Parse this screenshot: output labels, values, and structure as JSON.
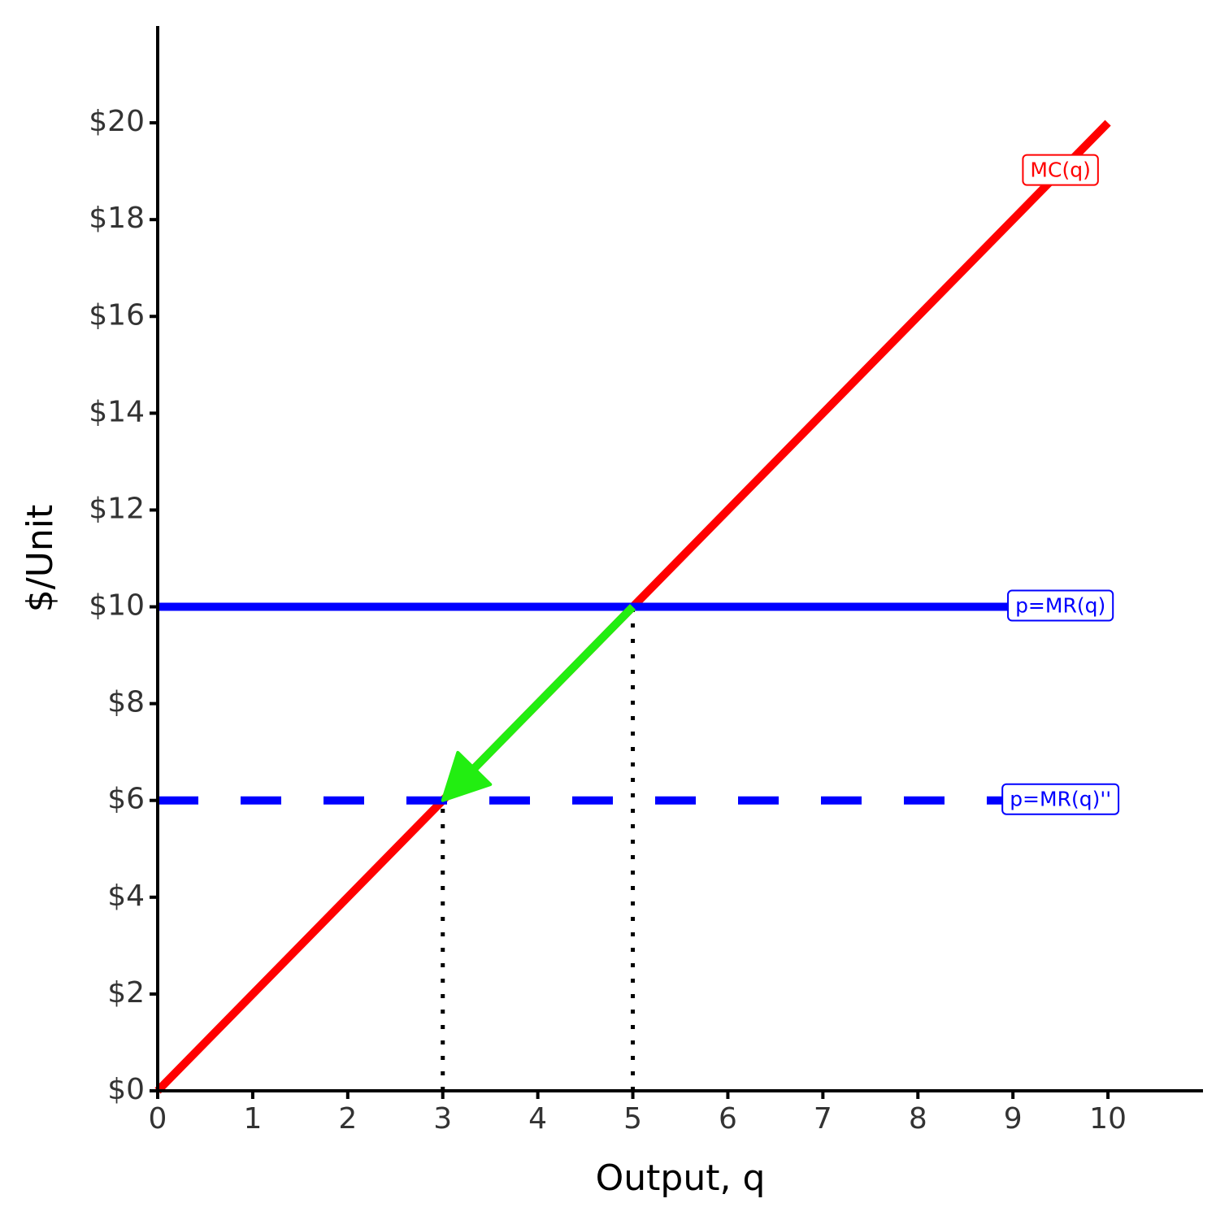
{
  "chart_data": {
    "type": "line",
    "x_label": "Output, q",
    "y_label": "$/Unit",
    "xlim": [
      0,
      11
    ],
    "ylim": [
      0,
      22
    ],
    "xticks": [
      0,
      1,
      2,
      3,
      4,
      5,
      6,
      7,
      8,
      9,
      10
    ],
    "yticks": [
      {
        "value": 0,
        "label": "$0"
      },
      {
        "value": 2,
        "label": "$2"
      },
      {
        "value": 4,
        "label": "$4"
      },
      {
        "value": 6,
        "label": "$6"
      },
      {
        "value": 8,
        "label": "$8"
      },
      {
        "value": 10,
        "label": "$10"
      },
      {
        "value": 12,
        "label": "$12"
      },
      {
        "value": 14,
        "label": "$14"
      },
      {
        "value": 16,
        "label": "$16"
      },
      {
        "value": 18,
        "label": "$18"
      },
      {
        "value": 20,
        "label": "$20"
      }
    ],
    "grid": false,
    "series": [
      {
        "name": "MC(q)",
        "color": "#ff0000",
        "dashed": false,
        "x": [
          0,
          10
        ],
        "values": [
          0,
          20
        ]
      },
      {
        "name": "p=MR(q)",
        "color": "#0000ff",
        "dashed": false,
        "x": [
          0,
          10
        ],
        "values": [
          10,
          10
        ]
      },
      {
        "name": "p=MR(q)''",
        "color": "#0000ff",
        "dashed": true,
        "x": [
          0,
          10
        ],
        "values": [
          6,
          6
        ]
      }
    ],
    "guides": [
      {
        "x": [
          5,
          5
        ],
        "values": [
          0,
          10
        ]
      },
      {
        "x": [
          3,
          3
        ],
        "values": [
          0,
          6
        ]
      }
    ],
    "arrow": {
      "color": "#22ee11",
      "x": [
        5,
        3
      ],
      "values": [
        10,
        6
      ]
    }
  }
}
